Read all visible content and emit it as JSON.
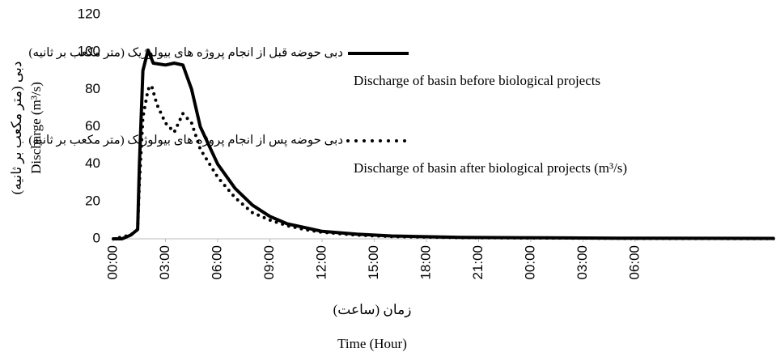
{
  "chart_data": {
    "type": "line",
    "y_label": "Discharge (m³/s)",
    "y_label_local": "دبی (متر مکعب بر ثانیه)",
    "x_label_local": "زمان (ساعت)",
    "x_label": "Time (Hour)",
    "xlim": [
      0,
      38
    ],
    "xticks": [
      {
        "value": 0,
        "label": "00:00"
      },
      {
        "value": 3,
        "label": "03:00"
      },
      {
        "value": 6,
        "label": "06:00"
      },
      {
        "value": 9,
        "label": "09:00"
      },
      {
        "value": 12,
        "label": "12:00"
      },
      {
        "value": 15,
        "label": "15:00"
      },
      {
        "value": 18,
        "label": "18:00"
      },
      {
        "value": 21,
        "label": "21:00"
      },
      {
        "value": 24,
        "label": "00:00"
      },
      {
        "value": 27,
        "label": "03:00"
      },
      {
        "value": 30,
        "label": "06:00"
      }
    ],
    "ylim": [
      0,
      120
    ],
    "yticks": [
      0,
      20,
      40,
      60,
      80,
      100,
      120
    ],
    "grid": false,
    "legend": "top-right",
    "series": [
      {
        "name": "Discharge of basin before biological projects",
        "name_local": "دبی حوضه قبل از انجام پروژه های  بیولوژیک  (متر مکعب بر ثانیه)",
        "color": "#000000",
        "style": "solid",
        "x": [
          0,
          0.5,
          1,
          1.4,
          1.5,
          1.7,
          2,
          2.3,
          3,
          3.5,
          4,
          4.5,
          5,
          6,
          7,
          8,
          9,
          10,
          11,
          12,
          14,
          16,
          20,
          25,
          30,
          38
        ],
        "values": [
          0,
          0,
          2,
          5,
          40,
          90,
          101,
          94,
          93,
          94,
          93,
          80,
          60,
          40,
          27,
          18,
          12,
          8,
          6,
          4,
          2.5,
          1.5,
          0.8,
          0.5,
          0.3,
          0.2
        ]
      },
      {
        "name": "Discharge of basin after biological projects (m³/s)",
        "name_local": "دبی حوضه پس از انجام پروژه های بیولوژیک (متر مکعب بر ثانیه)",
        "color": "#000000",
        "style": "dotted",
        "x": [
          0,
          1,
          1.4,
          1.5,
          1.7,
          2,
          2.2,
          2.5,
          3,
          3.5,
          3.8,
          4,
          4.5,
          5,
          6,
          7,
          8,
          9,
          10,
          11,
          12,
          14,
          16,
          20,
          25,
          30,
          38
        ],
        "values": [
          0,
          2,
          5,
          30,
          65,
          80,
          82,
          72,
          62,
          57,
          63,
          67,
          62,
          48,
          33,
          22,
          14,
          10,
          7,
          5,
          3.5,
          2,
          1.2,
          0.6,
          0.4,
          0.2,
          0.1
        ]
      }
    ]
  }
}
